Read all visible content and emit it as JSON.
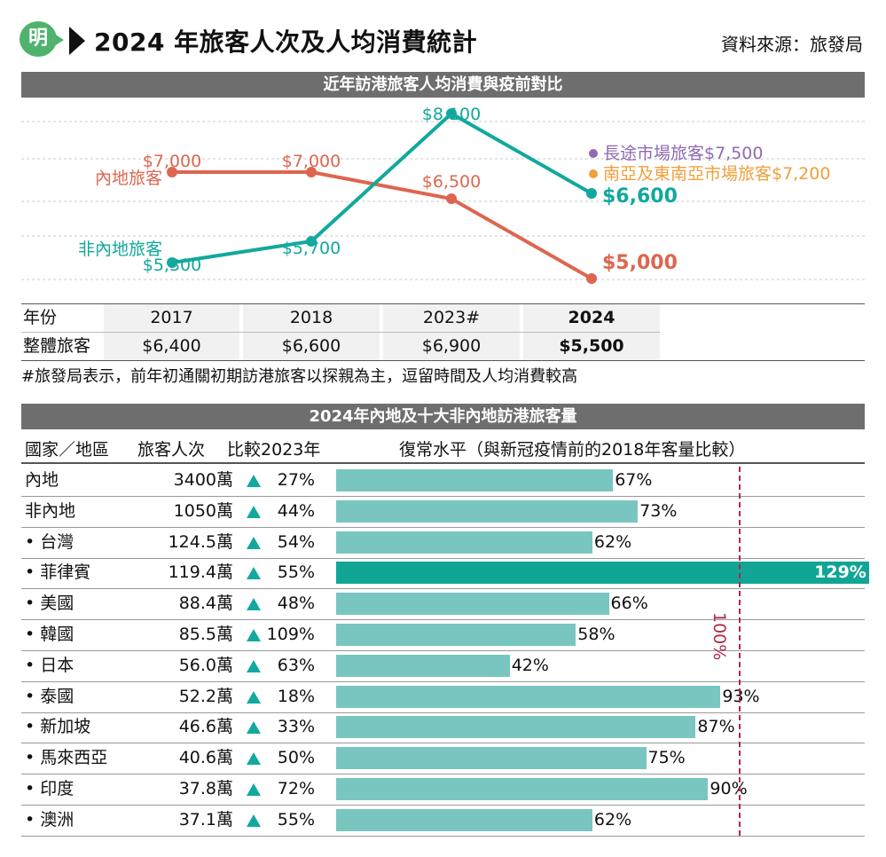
{
  "header": {
    "logo_text": "明",
    "title": "2024 年旅客人次及人均消費統計",
    "source": "資料來源：旅發局"
  },
  "section1": {
    "title": "近年訪港旅客人均消費與疫前對比"
  },
  "chart_data": [
    {
      "type": "line",
      "title": "近年訪港旅客人均消費與疫前對比",
      "categories": [
        "2017",
        "2018",
        "2023",
        "2024"
      ],
      "ylim": [
        4600,
        8400
      ],
      "grid": true,
      "series": [
        {
          "name": "內地旅客",
          "values": [
            7000,
            7000,
            6500,
            5000
          ],
          "labels": [
            "$7,000",
            "$7,000",
            "$6,500",
            "$5,000"
          ],
          "color": "#dd6650"
        },
        {
          "name": "非內地旅客",
          "values": [
            5300,
            5700,
            8100,
            6600
          ],
          "labels": [
            "$5,300",
            "$5,700",
            "$8,100",
            "$6,600"
          ],
          "color": "#12a89d"
        }
      ],
      "annotations": [
        {
          "text": "長途市場旅客$7,500",
          "color": "#8e6ab0"
        },
        {
          "text": "南亞及東南亞市場旅客$7,200",
          "color": "#f0a03c"
        }
      ]
    },
    {
      "type": "bar",
      "title": "2024年內地及十大非內地訪港旅客量",
      "xlabel": "復常水平（與新冠疫情前的2018年客量比較）",
      "reference_line": {
        "value": 100,
        "label": "100%"
      },
      "categories": [
        "內地",
        "非內地",
        "台灣",
        "菲律賓",
        "美國",
        "韓國",
        "日本",
        "泰國",
        "新加坡",
        "馬來西亞",
        "印度",
        "澳洲"
      ],
      "values": [
        67,
        73,
        62,
        129,
        66,
        58,
        42,
        93,
        87,
        75,
        90,
        62
      ],
      "highlight_index": 3,
      "colors": {
        "bar": "#79c6c0",
        "highlight": "#11a596",
        "reference": "#b0284a"
      }
    }
  ],
  "year_table": {
    "row_label_year": "年份",
    "row_label_total": "整體旅客",
    "years": [
      "2017",
      "2018",
      "2023#",
      "2024"
    ],
    "values": [
      "$6,400",
      "$6,600",
      "$6,900",
      "$5,500"
    ]
  },
  "note": "#旅發局表示，前年初通關初期訪港旅客以探親為主，逗留時間及人均消費較高",
  "section2": {
    "title": "2024年內地及十大非內地訪港旅客量",
    "col_region": "國家／地區",
    "col_visitors": "旅客人次",
    "col_compare": "比較2023年",
    "col_recovery": "復常水平（與新冠疫情前的2018年客量比較）",
    "ref_label": "100%",
    "rows": [
      {
        "name": "內地",
        "visitors": "3400萬",
        "change": "27%",
        "recovery": "67%"
      },
      {
        "name": "非內地",
        "visitors": "1050萬",
        "change": "44%",
        "recovery": "73%"
      },
      {
        "name": "• 台灣",
        "visitors": "124.5萬",
        "change": "54%",
        "recovery": "62%"
      },
      {
        "name": "• 菲律賓",
        "visitors": "119.4萬",
        "change": "55%",
        "recovery": "129%"
      },
      {
        "name": "• 美國",
        "visitors": "88.4萬",
        "change": "48%",
        "recovery": "66%"
      },
      {
        "name": "• 韓國",
        "visitors": "85.5萬",
        "change": "109%",
        "recovery": "58%"
      },
      {
        "name": "• 日本",
        "visitors": "56.0萬",
        "change": "63%",
        "recovery": "42%"
      },
      {
        "name": "• 泰國",
        "visitors": "52.2萬",
        "change": "18%",
        "recovery": "93%"
      },
      {
        "name": "• 新加坡",
        "visitors": "46.6萬",
        "change": "33%",
        "recovery": "87%"
      },
      {
        "name": "• 馬來西亞",
        "visitors": "40.6萬",
        "change": "50%",
        "recovery": "75%"
      },
      {
        "name": "• 印度",
        "visitors": "37.8萬",
        "change": "72%",
        "recovery": "90%"
      },
      {
        "name": "• 澳洲",
        "visitors": "37.1萬",
        "change": "55%",
        "recovery": "62%"
      }
    ]
  }
}
